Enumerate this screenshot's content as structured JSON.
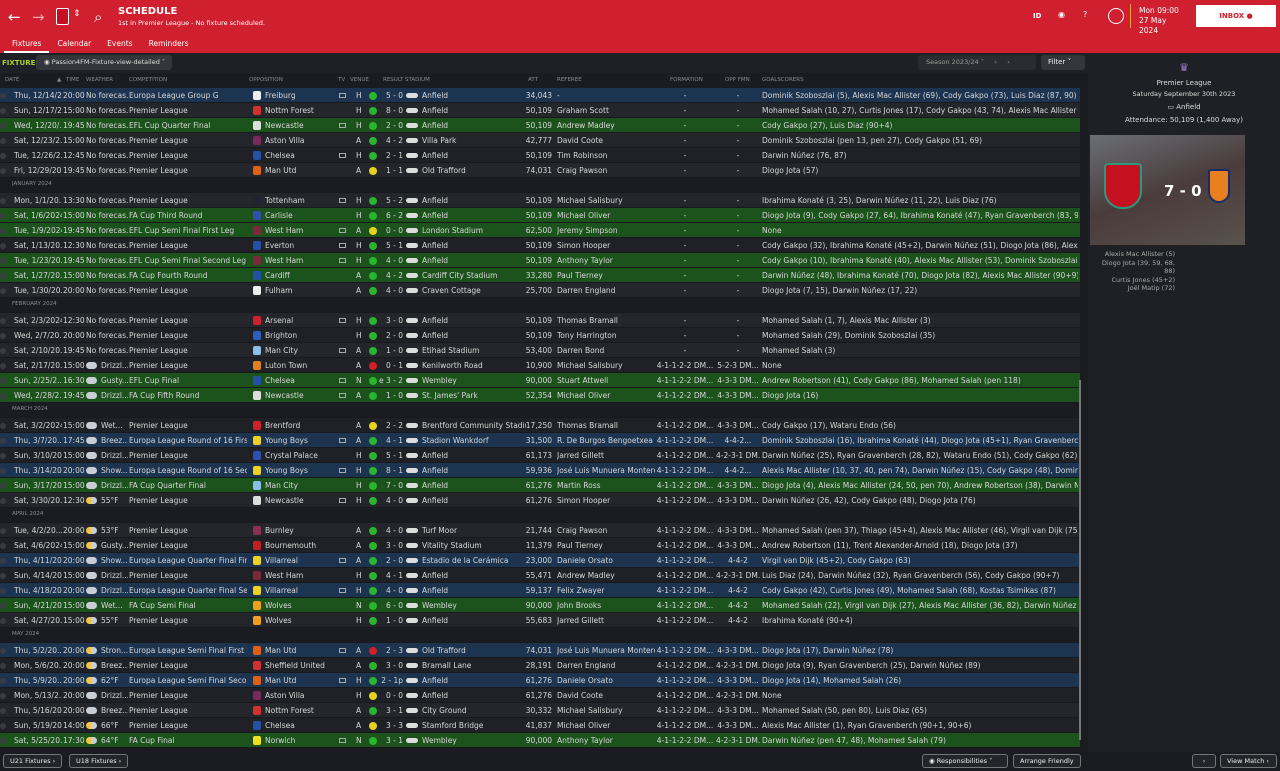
{
  "header": {
    "title": "SCHEDULE",
    "subtitle": "1st in Premier League - No fixture scheduled.",
    "id_label": "ID",
    "date_line1": "Mon 09:00",
    "date_line2": "27 May 2024",
    "inbox": "INBOX"
  },
  "tabs": [
    "Fixtures",
    "Calendar",
    "Events",
    "Reminders"
  ],
  "toolbar": {
    "section": "FIXTURES",
    "view": "Passion4FM-Fixture-view-detailed",
    "season": "Season 2023/24",
    "filter": "Filter"
  },
  "columns": {
    "date": "DATE",
    "time": "TIME",
    "weather": "WEATHER",
    "competition": "COMPETITION",
    "opposition": "OPPOSITION",
    "tv": "TV",
    "venue": "VENUE",
    "result": "RESULT",
    "stadium": "STADIUM",
    "att": "ATT",
    "referee": "REFEREE",
    "formation": "FORMATION",
    "oppfmn": "OPP FMN",
    "goalscorers": "GOALSCORERS"
  },
  "colors": {
    "accent": "#d01f2e",
    "europe_row": "#1c3450",
    "cup_row": "#1c521c",
    "win": "#29b52e",
    "draw": "#e6d21a",
    "loss": "#d0202a"
  },
  "rows": [
    {
      "d": "Thu, 12/14/2...",
      "t": "20:00",
      "w": "No forecas...",
      "c": "Europa League Group G",
      "o": "Freiburg",
      "tv": 1,
      "v": "H",
      "r": "W",
      "s": "5 - 0",
      "st": "Anfield",
      "a": "34,043",
      "ref": "-",
      "f": "-",
      "of": "-",
      "g": "Dominik Szoboszlai (5), Alexis Mac Allister (69), Cody Gakpo (73), Luis Diaz (87, 90)",
      "h": "eu",
      "cc": "#eee"
    },
    {
      "d": "Sun, 12/17/2...",
      "t": "15:00",
      "w": "No forecas...",
      "c": "Premier League",
      "o": "Nottm Forest",
      "tv": 0,
      "v": "H",
      "r": "W",
      "s": "8 - 0",
      "st": "Anfield",
      "a": "50,109",
      "ref": "Graham Scott",
      "f": "-",
      "of": "-",
      "g": "Mohamed Salah (10, 27), Curtis Jones (17), Cody Gakpo (43, 74), Alexis Mac Allister (45+4, 45+6), D",
      "h": "",
      "cc": "#d43030"
    },
    {
      "d": "Wed, 12/20/...",
      "t": "19:45",
      "w": "No forecas...",
      "c": "EFL Cup Quarter Final",
      "o": "Newcastle",
      "tv": 1,
      "v": "H",
      "r": "W",
      "s": "2 - 0",
      "st": "Anfield",
      "a": "50,109",
      "ref": "Andrew Madley",
      "f": "-",
      "of": "-",
      "g": "Cody Gakpo (27), Luis Diaz (90+4)",
      "h": "cup",
      "cc": "#ddd"
    },
    {
      "d": "Sat, 12/23/2...",
      "t": "15:00",
      "w": "No forecas...",
      "c": "Premier League",
      "o": "Aston Villa",
      "tv": 0,
      "v": "A",
      "r": "W",
      "s": "4 - 2",
      "st": "Villa Park",
      "a": "42,777",
      "ref": "David Coote",
      "f": "-",
      "of": "-",
      "g": "Dominik Szoboszlai (pen 13, pen 27), Cody Gakpo (51, 69)",
      "h": "",
      "cc": "#7a2a5a"
    },
    {
      "d": "Tue, 12/26/2...",
      "t": "12:45",
      "w": "No forecas...",
      "c": "Premier League",
      "o": "Chelsea",
      "tv": 1,
      "v": "H",
      "r": "W",
      "s": "2 - 1",
      "st": "Anfield",
      "a": "50,109",
      "ref": "Tim Robinson",
      "f": "-",
      "of": "-",
      "g": "Darwin Núñez (76, 87)",
      "h": "",
      "cc": "#2450a8"
    },
    {
      "d": "Fri, 12/29/20...",
      "t": "19:45",
      "w": "No forecas...",
      "c": "Premier League",
      "o": "Man Utd",
      "tv": 0,
      "v": "A",
      "r": "D",
      "s": "1 - 1",
      "st": "Old Trafford",
      "a": "74,031",
      "ref": "Craig Pawson",
      "f": "-",
      "of": "-",
      "g": "Diogo Jota (57)",
      "h": "",
      "cc": "#e06010"
    },
    {
      "month": "JANUARY 2024"
    },
    {
      "d": "Mon, 1/1/20...",
      "t": "13:30",
      "w": "No forecas...",
      "c": "Premier League",
      "o": "Tottenham",
      "tv": 1,
      "v": "H",
      "r": "W",
      "s": "5 - 2",
      "st": "Anfield",
      "a": "50,109",
      "ref": "Michael Salisbury",
      "f": "-",
      "of": "-",
      "g": "Ibrahima Konaté (3, 25), Darwin Núñez (11, 22), Luis Diaz (76)",
      "h": "",
      "cc": "#223"
    },
    {
      "d": "Sat, 1/6/2024",
      "t": "15:00",
      "w": "No forecas...",
      "c": "FA Cup Third Round",
      "o": "Carlisle",
      "tv": 0,
      "v": "H",
      "r": "W",
      "s": "6 - 2",
      "st": "Anfield",
      "a": "50,109",
      "ref": "Michael Oliver",
      "f": "-",
      "of": "-",
      "g": "Diogo Jota (9), Cody Gakpo (27, 64), Ibrahima Konaté (47), Ryan Gravenberch (83, 90+4)",
      "h": "cup",
      "cc": "#3050b0"
    },
    {
      "d": "Tue, 1/9/2024",
      "t": "19:45",
      "w": "No forecas...",
      "c": "EFL Cup Semi Final First Leg",
      "o": "West Ham",
      "tv": 1,
      "v": "A",
      "r": "D",
      "s": "0 - 0",
      "st": "London Stadium",
      "a": "62,500",
      "ref": "Jeremy Simpson",
      "f": "-",
      "of": "-",
      "g": "None",
      "h": "cup",
      "cc": "#7a2a3a"
    },
    {
      "d": "Sat, 1/13/20...",
      "t": "12:30",
      "w": "No forecas...",
      "c": "Premier League",
      "o": "Everton",
      "tv": 1,
      "v": "H",
      "r": "W",
      "s": "5 - 1",
      "st": "Anfield",
      "a": "50,109",
      "ref": "Simon Hooper",
      "f": "-",
      "of": "-",
      "g": "Cody Gakpo (32), Ibrahima Konaté (45+2), Darwin Núñez (51), Diogo Jota (86), Alexis Mac Allister (",
      "h": "",
      "cc": "#2450a8"
    },
    {
      "d": "Tue, 1/23/20...",
      "t": "19:45",
      "w": "No forecas...",
      "c": "EFL Cup Semi Final Second Leg",
      "o": "West Ham",
      "tv": 1,
      "v": "H",
      "r": "W",
      "s": "4 - 0",
      "st": "Anfield",
      "a": "50,109",
      "ref": "Anthony Taylor",
      "f": "-",
      "of": "-",
      "g": "Cody Gakpo (10), Ibrahima Konaté (40), Alexis Mac Allister (53), Dominik Szoboszlai (69)",
      "h": "cup",
      "cc": "#7a2a3a"
    },
    {
      "d": "Sat, 1/27/20...",
      "t": "15:00",
      "w": "No forecas...",
      "c": "FA Cup Fourth Round",
      "o": "Cardiff",
      "tv": 0,
      "v": "A",
      "r": "W",
      "s": "4 - 2",
      "st": "Cardiff City Stadium",
      "a": "33,280",
      "ref": "Paul Tierney",
      "f": "-",
      "of": "-",
      "g": "Darwin Núñez (48), Ibrahima Konaté (70), Diogo Jota (82), Alexis Mac Allister (90+9)",
      "h": "cup",
      "cc": "#2450a8"
    },
    {
      "d": "Tue, 1/30/20...",
      "t": "20:00",
      "w": "No forecas...",
      "c": "Premier League",
      "o": "Fulham",
      "tv": 0,
      "v": "A",
      "r": "W",
      "s": "4 - 0",
      "st": "Craven Cottage",
      "a": "25,700",
      "ref": "Darren England",
      "f": "-",
      "of": "-",
      "g": "Diogo Jota (7, 15), Darwin Núñez (17, 22)",
      "h": "",
      "cc": "#eee"
    },
    {
      "month": "FEBRUARY 2024"
    },
    {
      "d": "Sat, 2/3/2024",
      "t": "12:30",
      "w": "No forecas...",
      "c": "Premier League",
      "o": "Arsenal",
      "tv": 1,
      "v": "H",
      "r": "W",
      "s": "3 - 0",
      "st": "Anfield",
      "a": "50,109",
      "ref": "Thomas Bramall",
      "f": "-",
      "of": "-",
      "g": "Mohamed Salah (1, 7), Alexis Mac Allister (3)",
      "h": "",
      "cc": "#d0202a"
    },
    {
      "d": "Wed, 2/7/20...",
      "t": "20:00",
      "w": "No forecas...",
      "c": "Premier League",
      "o": "Brighton",
      "tv": 0,
      "v": "H",
      "r": "W",
      "s": "2 - 0",
      "st": "Anfield",
      "a": "50,109",
      "ref": "Tony Harrington",
      "f": "-",
      "of": "-",
      "g": "Mohamed Salah (29), Dominik Szoboszlai (35)",
      "h": "",
      "cc": "#2a60c0"
    },
    {
      "d": "Sat, 2/10/20...",
      "t": "19:45",
      "w": "No forecas...",
      "c": "Premier League",
      "o": "Man City",
      "tv": 1,
      "v": "A",
      "r": "W",
      "s": "1 - 0",
      "st": "Etihad Stadium",
      "a": "53,400",
      "ref": "Darren Bond",
      "f": "-",
      "of": "-",
      "g": "Mohamed Salah (3)",
      "h": "",
      "cc": "#8ac0e8"
    },
    {
      "d": "Sat, 2/17/20...",
      "t": "15:00",
      "w": "Drizzl...",
      "wi": "cloud",
      "c": "Premier League",
      "o": "Luton Town",
      "tv": 0,
      "v": "A",
      "r": "L",
      "s": "0 - 1",
      "st": "Kenilworth Road",
      "a": "10,900",
      "ref": "Michael Salisbury",
      "f": "4-1-1-2-2 DM...",
      "of": "5-2-3 DM...",
      "g": "None",
      "h": "",
      "cc": "#e08020"
    },
    {
      "d": "Sun, 2/25/2...",
      "t": "16:30",
      "w": "Gusty...",
      "wi": "cloud",
      "c": "EFL Cup Final",
      "o": "Chelsea",
      "tv": 1,
      "v": "N",
      "r": "W",
      "s": "e 3 - 2",
      "st": "Wembley",
      "a": "90,000",
      "ref": "Stuart Attwell",
      "f": "4-1-1-2-2 DM...",
      "of": "4-3-3 DM...",
      "g": "Andrew Robertson (41), Cody Gakpo (86), Mohamed Salah (pen 118)",
      "h": "cup",
      "cc": "#2450a8"
    },
    {
      "d": "Wed, 2/28/2...",
      "t": "19:45",
      "w": "Drizzl...",
      "wi": "cloud",
      "c": "FA Cup Fifth Round",
      "o": "Newcastle",
      "tv": 1,
      "v": "A",
      "r": "W",
      "s": "1 - 0",
      "st": "St. James' Park",
      "a": "52,354",
      "ref": "Michael Oliver",
      "f": "4-1-1-2-2 DM...",
      "of": "4-3-3 DM...",
      "g": "Diogo Jota (16)",
      "h": "cup",
      "cc": "#ddd"
    },
    {
      "month": "MARCH 2024"
    },
    {
      "d": "Sat, 3/2/2024",
      "t": "15:00",
      "w": "Wet...",
      "wi": "cloud",
      "c": "Premier League",
      "o": "Brentford",
      "tv": 0,
      "v": "A",
      "r": "D",
      "s": "2 - 2",
      "st": "Brentford Community Stadium",
      "a": "17,250",
      "ref": "Thomas Bramall",
      "f": "4-1-1-2-2 DM...",
      "of": "4-3-3 DM...",
      "g": "Cody Gakpo (17), Wataru Endo (56)",
      "h": "",
      "cc": "#d0202a"
    },
    {
      "d": "Thu, 3/7/20...",
      "t": "17:45",
      "w": "Breez...",
      "wi": "cloud",
      "c": "Europa League Round of 16 First L...",
      "o": "Young Boys",
      "tv": 1,
      "v": "A",
      "r": "W",
      "s": "4 - 1",
      "st": "Stadion Wankdorf",
      "a": "31,500",
      "ref": "R. De Burgos Bengoetxea",
      "f": "4-1-1-2-2 DM...",
      "of": "4-4-2...",
      "g": "Dominik Szoboszlai (16), Ibrahima Konaté (44), Diogo Jota (45+1), Ryan Gravenberch (50)",
      "h": "eu",
      "cc": "#f0d020"
    },
    {
      "d": "Sun, 3/10/20...",
      "t": "15:00",
      "w": "Drizzl...",
      "wi": "cloud",
      "c": "Premier League",
      "o": "Crystal Palace",
      "tv": 0,
      "v": "H",
      "r": "W",
      "s": "5 - 1",
      "st": "Anfield",
      "a": "61,173",
      "ref": "Jarred Gillett",
      "f": "4-1-1-2-2 DM...",
      "of": "4-2-3-1 DM...",
      "g": "Darwin Núñez (25), Ryan Gravenberch (28, 82), Wataru Endo (51), Cody Gakpo (62)",
      "h": "",
      "cc": "#2a50b0"
    },
    {
      "d": "Thu, 3/14/20...",
      "t": "20:00",
      "w": "Show...",
      "wi": "cloud",
      "c": "Europa League Round of 16 Secon...",
      "o": "Young Boys",
      "tv": 1,
      "v": "H",
      "r": "W",
      "s": "8 - 1",
      "st": "Anfield",
      "a": "59,936",
      "ref": "José Luis Munuera Montero",
      "f": "4-1-1-2-2 DM...",
      "of": "4-4-2...",
      "g": "Alexis Mac Allister (10, 37, 40, pen 74), Darwin Núñez (15), Cody Gakpo (48), Dominik Szoboszlai (",
      "h": "eu",
      "cc": "#f0d020"
    },
    {
      "d": "Sun, 3/17/20...",
      "t": "15:00",
      "w": "Drizzl...",
      "wi": "cloud",
      "c": "FA Cup Quarter Final",
      "o": "Man City",
      "tv": 0,
      "v": "H",
      "r": "W",
      "s": "7 - 0",
      "st": "Anfield",
      "a": "61,276",
      "ref": "Martin Ross",
      "f": "4-1-1-2-2 DM...",
      "of": "4-3-3 DM...",
      "g": "Diogo Jota (4), Alexis Mac Allister (24, 50, pen 70), Andrew Robertson (38), Darwin Núñez (57, 68)",
      "h": "cup",
      "cc": "#8ac0e8"
    },
    {
      "d": "Sat, 3/30/20...",
      "t": "12:30",
      "w": "55°F",
      "wi": "sun",
      "c": "Premier League",
      "o": "Newcastle",
      "tv": 1,
      "v": "H",
      "r": "W",
      "s": "4 - 0",
      "st": "Anfield",
      "a": "61,276",
      "ref": "Simon Hooper",
      "f": "4-1-1-2-2 DM...",
      "of": "4-3-3 DM...",
      "g": "Darwin Núñez (26, 42), Cody Gakpo (48), Diogo Jota (76)",
      "h": "",
      "cc": "#ddd"
    },
    {
      "month": "APRIL 2024"
    },
    {
      "d": "Tue, 4/2/20...",
      "t": "20:00",
      "w": "53°F",
      "wi": "sun",
      "c": "Premier League",
      "o": "Burnley",
      "tv": 0,
      "v": "A",
      "r": "W",
      "s": "4 - 0",
      "st": "Turf Moor",
      "a": "21,744",
      "ref": "Craig Pawson",
      "f": "4-1-1-2-2 DM...",
      "of": "4-3-3 DM...",
      "g": "Mohamed Salah (pen 37), Thiago (45+4), Alexis Mac Allister (46), Virgil van Dijk (75)",
      "h": "",
      "cc": "#8a3050"
    },
    {
      "d": "Sat, 4/6/2024",
      "t": "15:00",
      "w": "Gusty...",
      "wi": "sun",
      "c": "Premier League",
      "o": "Bournemouth",
      "tv": 0,
      "v": "A",
      "r": "W",
      "s": "3 - 0",
      "st": "Vitality Stadium",
      "a": "11,379",
      "ref": "Paul Tierney",
      "f": "4-1-1-2-2 DM...",
      "of": "4-3-3 DM...",
      "g": "Andrew Robertson (11), Trent Alexander-Arnold (18), Diogo Jota (37)",
      "h": "",
      "cc": "#c02020"
    },
    {
      "d": "Thu, 4/11/20...",
      "t": "20:00",
      "w": "Show...",
      "wi": "cloud",
      "c": "Europa League Quarter Final First L...",
      "o": "Villarreal",
      "tv": 1,
      "v": "A",
      "r": "W",
      "s": "2 - 0",
      "st": "Estadio de la Cerámica",
      "a": "23,000",
      "ref": "Daniele Orsato",
      "f": "4-1-1-2-2 DM...",
      "of": "4-4-2",
      "g": "Virgil van Dijk (45+2), Cody Gakpo (63)",
      "h": "eu",
      "cc": "#f0d020"
    },
    {
      "d": "Sun, 4/14/20...",
      "t": "15:00",
      "w": "Drizzl...",
      "wi": "cloud",
      "c": "Premier League",
      "o": "West Ham",
      "tv": 0,
      "v": "H",
      "r": "W",
      "s": "4 - 1",
      "st": "Anfield",
      "a": "55,471",
      "ref": "Andrew Madley",
      "f": "4-1-1-2-2 DM...",
      "of": "4-2-3-1 DM...",
      "g": "Luis Diaz (24), Darwin Núñez (32), Ryan Gravenberch (56), Cody Gakpo (90+7)",
      "h": "",
      "cc": "#7a2a3a"
    },
    {
      "d": "Thu, 4/18/20...",
      "t": "20:00",
      "w": "Drizzl...",
      "wi": "cloud",
      "c": "Europa League Quarter Final Secon...",
      "o": "Villarreal",
      "tv": 1,
      "v": "H",
      "r": "W",
      "s": "4 - 0",
      "st": "Anfield",
      "a": "59,137",
      "ref": "Felix Zwayer",
      "f": "4-1-1-2-2 DM...",
      "of": "4-4-2",
      "g": "Cody Gakpo (42), Curtis Jones (49), Mohamed Salah (68), Kostas Tsimikas (87)",
      "h": "eu",
      "cc": "#f0d020"
    },
    {
      "d": "Sun, 4/21/20...",
      "t": "15:00",
      "w": "Wet...",
      "wi": "cloud",
      "c": "FA Cup Semi Final",
      "o": "Wolves",
      "tv": 0,
      "v": "N",
      "r": "W",
      "s": "6 - 0",
      "st": "Wembley",
      "a": "90,000",
      "ref": "John Brooks",
      "f": "4-1-1-2-2 DM...",
      "of": "4-4-2",
      "g": "Mohamed Salah (22), Virgil van Dijk (27), Alexis Mac Allister (36, 82), Darwin Núñez (57), Dominik S",
      "h": "cup",
      "cc": "#f0a020"
    },
    {
      "d": "Sat, 4/27/20...",
      "t": "15:00",
      "w": "55°F",
      "wi": "sun",
      "c": "Premier League",
      "o": "Wolves",
      "tv": 0,
      "v": "H",
      "r": "W",
      "s": "1 - 0",
      "st": "Anfield",
      "a": "55,683",
      "ref": "Jarred Gillett",
      "f": "4-1-1-2-2 DM...",
      "of": "4-4-2",
      "g": "Ibrahima Konaté (90+4)",
      "h": "",
      "cc": "#f0a020"
    },
    {
      "month": "MAY 2024"
    },
    {
      "d": "Thu, 5/2/20...",
      "t": "20:00",
      "w": "Stron...",
      "wi": "sun",
      "c": "Europa League Semi Final First Leg",
      "o": "Man Utd",
      "tv": 1,
      "v": "A",
      "r": "L",
      "s": "2 - 3",
      "st": "Old Trafford",
      "a": "74,031",
      "ref": "José Luis Munuera Montero",
      "f": "4-1-1-2-2 DM...",
      "of": "4-3-3 DM...",
      "g": "Diogo Jota (17), Darwin Núñez (78)",
      "h": "eu",
      "cc": "#e06010"
    },
    {
      "d": "Mon, 5/6/20...",
      "t": "20:00",
      "w": "Breez...",
      "wi": "sun",
      "c": "Premier League",
      "o": "Sheffield United",
      "tv": 0,
      "v": "A",
      "r": "W",
      "s": "3 - 0",
      "st": "Bramall Lane",
      "a": "28,191",
      "ref": "Darren England",
      "f": "4-1-1-2-2 DM...",
      "of": "4-2-3-1 DM...",
      "g": "Diogo Jota (9), Ryan Gravenberch (25), Darwin Núñez (89)",
      "h": "",
      "cc": "#d03030"
    },
    {
      "d": "Thu, 5/9/20...",
      "t": "20:00",
      "w": "62°F",
      "wi": "sun",
      "c": "Europa League Semi Final Second...",
      "o": "Man Utd",
      "tv": 1,
      "v": "H",
      "r": "W",
      "s": "2 - 1p",
      "st": "Anfield",
      "a": "61,276",
      "ref": "Daniele Orsato",
      "f": "4-1-1-2-2 DM...",
      "of": "4-3-3 DM...",
      "g": "Diogo Jota (14), Mohamed Salah (26)",
      "h": "eu",
      "cc": "#e06010"
    },
    {
      "d": "Mon, 5/13/2...",
      "t": "20:00",
      "w": "Drizzl...",
      "wi": "cloud",
      "c": "Premier League",
      "o": "Aston Villa",
      "tv": 0,
      "v": "H",
      "r": "D",
      "s": "0 - 0",
      "st": "Anfield",
      "a": "61,276",
      "ref": "David Coote",
      "f": "4-1-1-2-2 DM...",
      "of": "4-2-3-1 DM...",
      "g": "None",
      "h": "",
      "cc": "#7a2a5a"
    },
    {
      "d": "Thu, 5/16/20...",
      "t": "20:00",
      "w": "Breez...",
      "wi": "cloud",
      "c": "Premier League",
      "o": "Nottm Forest",
      "tv": 0,
      "v": "A",
      "r": "W",
      "s": "3 - 1",
      "st": "City Ground",
      "a": "30,332",
      "ref": "Michael Salisbury",
      "f": "4-1-1-2-2 DM...",
      "of": "4-3-3 DM...",
      "g": "Mohamed Salah (50, pen 80), Luis Diaz (65)",
      "h": "",
      "cc": "#d43030"
    },
    {
      "d": "Sun, 5/19/20...",
      "t": "14:00",
      "w": "66°F",
      "wi": "sun",
      "c": "Premier League",
      "o": "Chelsea",
      "tv": 0,
      "v": "A",
      "r": "D",
      "s": "3 - 3",
      "st": "Stamford Bridge",
      "a": "41,837",
      "ref": "Michael Oliver",
      "f": "4-1-1-2-2 DM...",
      "of": "4-3-3 DM...",
      "g": "Alexis Mac Allister (1), Ryan Gravenberch (90+1, 90+6)",
      "h": "",
      "cc": "#2450a8"
    },
    {
      "d": "Sat, 5/25/20...",
      "t": "17:30",
      "w": "64°F",
      "wi": "sun",
      "c": "FA Cup Final",
      "o": "Norwich",
      "tv": 1,
      "v": "N",
      "r": "W",
      "s": "3 - 1",
      "st": "Wembley",
      "a": "90,000",
      "ref": "Anthony Taylor",
      "f": "4-1-1-2-2 DM...",
      "of": "4-2-3-1 DM...",
      "g": "Darwin Núñez (pen 47, 48), Mohamed Salah (79)",
      "h": "cup",
      "cc": "#f0e020"
    }
  ],
  "side": {
    "competition": "Premier League",
    "date": "Saturday September 30th 2023",
    "stadium": "Anfield",
    "attendance": "Attendance: 50,109 (1,400 Away)",
    "score": "7 - 0",
    "scorers": [
      "Alexis Mac Allister (5)",
      "Diogo Jota (39, 59, 68, 88)",
      "Curtis Jones (45+2)",
      "Joël Matip (72)"
    ]
  },
  "bottom": {
    "u21": "U21 Fixtures",
    "u18": "U18 Fixtures",
    "responsibilities": "Responsibilities",
    "arrange": "Arrange Friendly",
    "next": "›",
    "view_match": "View Match"
  }
}
